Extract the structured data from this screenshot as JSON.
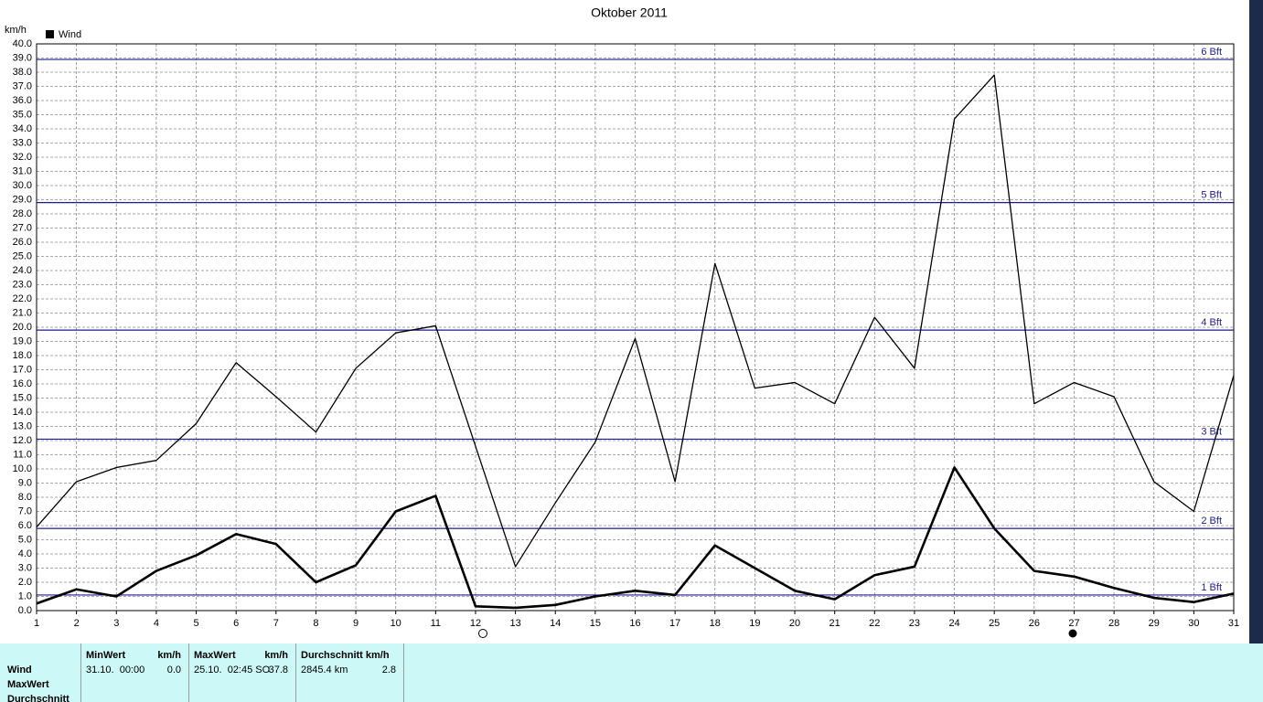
{
  "chart_data": {
    "type": "line",
    "title": "Oktober 2011",
    "y_label": "km/h",
    "legend_label": "Wind",
    "legend_color": "#000000",
    "x": [
      1,
      2,
      3,
      4,
      5,
      6,
      7,
      8,
      9,
      10,
      11,
      12,
      13,
      14,
      15,
      16,
      17,
      18,
      19,
      20,
      21,
      22,
      23,
      24,
      25,
      26,
      27,
      28,
      29,
      30,
      31
    ],
    "xlim": [
      1,
      31
    ],
    "xticks": [
      1,
      2,
      3,
      4,
      5,
      6,
      7,
      8,
      9,
      10,
      11,
      12,
      13,
      14,
      15,
      16,
      17,
      18,
      19,
      20,
      21,
      22,
      23,
      24,
      25,
      26,
      27,
      28,
      29,
      30,
      31
    ],
    "ylim": [
      0,
      40
    ],
    "yticks": [
      {
        "value": 0,
        "label": "0.0"
      },
      {
        "value": 1,
        "label": "1.0"
      },
      {
        "value": 2,
        "label": "2.0"
      },
      {
        "value": 3,
        "label": "3.0"
      },
      {
        "value": 4,
        "label": "4.0"
      },
      {
        "value": 5,
        "label": "5.0"
      },
      {
        "value": 6,
        "label": "6.0"
      },
      {
        "value": 7,
        "label": "7.0"
      },
      {
        "value": 8,
        "label": "8.0"
      },
      {
        "value": 9,
        "label": "9.0"
      },
      {
        "value": 10,
        "label": "10.0"
      },
      {
        "value": 11,
        "label": "11.0"
      },
      {
        "value": 12,
        "label": "12.0"
      },
      {
        "value": 13,
        "label": "13.0"
      },
      {
        "value": 14,
        "label": "14.0"
      },
      {
        "value": 15,
        "label": "15.0"
      },
      {
        "value": 16,
        "label": "16.0"
      },
      {
        "value": 17,
        "label": "17.0"
      },
      {
        "value": 18,
        "label": "18.0"
      },
      {
        "value": 19,
        "label": "19.0"
      },
      {
        "value": 20,
        "label": "20.0"
      },
      {
        "value": 21,
        "label": "21.0"
      },
      {
        "value": 22,
        "label": "22.0"
      },
      {
        "value": 23,
        "label": "23.0"
      },
      {
        "value": 24,
        "label": "24.0"
      },
      {
        "value": 25,
        "label": "25.0"
      },
      {
        "value": 26,
        "label": "26.0"
      },
      {
        "value": 27,
        "label": "27.0"
      },
      {
        "value": 28,
        "label": "28.0"
      },
      {
        "value": 29,
        "label": "29.0"
      },
      {
        "value": 30,
        "label": "30.0"
      },
      {
        "value": 31,
        "label": "31.0"
      },
      {
        "value": 32,
        "label": "32.0"
      },
      {
        "value": 33,
        "label": "33.0"
      },
      {
        "value": 34,
        "label": "34.0"
      },
      {
        "value": 35,
        "label": "35.0"
      },
      {
        "value": 36,
        "label": "36.0"
      },
      {
        "value": 37,
        "label": "37.0"
      },
      {
        "value": 38,
        "label": "38.0"
      },
      {
        "value": 39,
        "label": "39.0"
      },
      {
        "value": 40,
        "label": "40.0"
      }
    ],
    "grid": true,
    "reference_color": "#1c1c96",
    "reference_lines": [
      {
        "value": 1.1,
        "label": "1 Bft"
      },
      {
        "value": 5.8,
        "label": "2 Bft"
      },
      {
        "value": 12.1,
        "label": "3 Bft"
      },
      {
        "value": 19.8,
        "label": "4 Bft"
      },
      {
        "value": 28.8,
        "label": "5 Bft"
      },
      {
        "value": 38.9,
        "label": "6 Bft"
      }
    ],
    "series": [
      {
        "color": "#000000",
        "line_width": 1.3,
        "values": [
          5.9,
          9.1,
          10.1,
          10.6,
          13.2,
          17.5,
          15.1,
          12.6,
          17.1,
          19.6,
          20.1,
          11.6,
          3.1,
          7.6,
          11.9,
          19.2,
          9.1,
          24.5,
          15.7,
          16.1,
          14.6,
          20.7,
          17.1,
          34.7,
          37.8,
          14.6,
          16.1,
          15.1,
          9.1,
          7.0,
          16.6
        ]
      },
      {
        "color": "#000000",
        "line_width": 2.6,
        "values": [
          0.5,
          1.5,
          1.0,
          2.8,
          3.9,
          5.4,
          4.7,
          2.0,
          3.2,
          7.0,
          8.1,
          0.3,
          0.2,
          0.4,
          1.0,
          1.4,
          1.1,
          4.6,
          3.0,
          1.4,
          0.8,
          2.5,
          3.1,
          10.1,
          5.8,
          2.8,
          2.4,
          1.6,
          0.9,
          0.6,
          1.2
        ]
      }
    ]
  },
  "stats": {
    "row_labels": [
      "Wind",
      "MaxWert",
      "Durchschnitt"
    ],
    "columns": [
      {
        "header": "MinWert",
        "unit": "km/h",
        "text": "31.10.  00:00",
        "value": "0.0"
      },
      {
        "header": "MaxWert",
        "unit": "km/h",
        "text": "25.10.  02:45 SO",
        "value": "37.8"
      },
      {
        "header": "Durchschnitt km/h",
        "text": "2845.4 km",
        "value": "2.8"
      }
    ]
  }
}
